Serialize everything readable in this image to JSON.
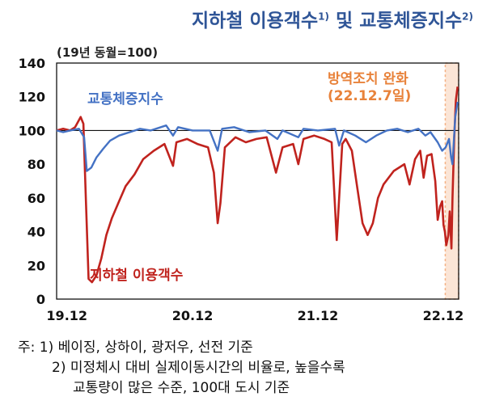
{
  "title": {
    "main": "지하철 이용객수",
    "sup1": "1)",
    "and": "및",
    "second": "교통체증지수",
    "sup2": "2)"
  },
  "unit_label": "(19년 동월=100)",
  "annotation": {
    "line1": "방역조치 완화",
    "line2": "(22.12.7일)"
  },
  "notes": [
    "주: 1) 베이징, 상하이, 광저우, 선전 기준",
    "2) 미정체시 대비 실제이동시간의 비율로, 높을수록",
    "교통량이 많은 수준, 100대 도시 기준"
  ],
  "colors": {
    "traffic": "#4472c4",
    "subway": "#c0231e",
    "shade": "#f4b183",
    "annotation": "#e8823a",
    "title": "#2f5597"
  },
  "chart_data": {
    "type": "line",
    "title": "지하철 이용객수 및 교통체증지수",
    "ylabel": "(19년 동월=100)",
    "ylim": [
      0,
      140
    ],
    "yticks": [
      0,
      20,
      40,
      60,
      80,
      100,
      120,
      140
    ],
    "xticks": [
      "19.12",
      "20.12",
      "21.12",
      "22.12"
    ],
    "xlim": [
      "2019-11-01",
      "2023-01-15"
    ],
    "reference_line": 100,
    "grid": false,
    "shaded_period": {
      "start": "2022-12-07",
      "end": "2023-01-15"
    },
    "series": [
      {
        "name": "교통체증지수",
        "points": [
          [
            "2019-11-01",
            100
          ],
          [
            "2019-11-20",
            99
          ],
          [
            "2019-12-10",
            100
          ],
          [
            "2020-01-05",
            101
          ],
          [
            "2020-01-20",
            96
          ],
          [
            "2020-01-28",
            76
          ],
          [
            "2020-02-10",
            78
          ],
          [
            "2020-02-25",
            84
          ],
          [
            "2020-03-15",
            89
          ],
          [
            "2020-04-05",
            94
          ],
          [
            "2020-05-01",
            97
          ],
          [
            "2020-06-01",
            99
          ],
          [
            "2020-07-01",
            101
          ],
          [
            "2020-08-01",
            100
          ],
          [
            "2020-09-15",
            103
          ],
          [
            "2020-10-05",
            97
          ],
          [
            "2020-10-20",
            102
          ],
          [
            "2020-12-01",
            100
          ],
          [
            "2021-01-20",
            100
          ],
          [
            "2021-02-12",
            88
          ],
          [
            "2021-02-25",
            101
          ],
          [
            "2021-04-01",
            102
          ],
          [
            "2021-05-15",
            99
          ],
          [
            "2021-07-01",
            100
          ],
          [
            "2021-08-05",
            95
          ],
          [
            "2021-08-20",
            100
          ],
          [
            "2021-10-05",
            96
          ],
          [
            "2021-10-20",
            101
          ],
          [
            "2021-12-01",
            100
          ],
          [
            "2022-01-20",
            101
          ],
          [
            "2022-02-01",
            91
          ],
          [
            "2022-02-15",
            100
          ],
          [
            "2022-03-20",
            97
          ],
          [
            "2022-04-20",
            93
          ],
          [
            "2022-05-20",
            97
          ],
          [
            "2022-06-20",
            100
          ],
          [
            "2022-07-20",
            101
          ],
          [
            "2022-08-20",
            99
          ],
          [
            "2022-09-20",
            101
          ],
          [
            "2022-10-10",
            97
          ],
          [
            "2022-10-25",
            99
          ],
          [
            "2022-11-15",
            93
          ],
          [
            "2022-11-28",
            88
          ],
          [
            "2022-12-08",
            90
          ],
          [
            "2022-12-18",
            95
          ],
          [
            "2022-12-24",
            84
          ],
          [
            "2022-12-28",
            80
          ],
          [
            "2023-01-05",
            108
          ],
          [
            "2023-01-12",
            117
          ]
        ]
      },
      {
        "name": "지하철 이용객수",
        "points": [
          [
            "2019-11-01",
            100
          ],
          [
            "2019-11-20",
            101
          ],
          [
            "2019-12-10",
            100
          ],
          [
            "2019-12-25",
            102
          ],
          [
            "2020-01-10",
            108
          ],
          [
            "2020-01-18",
            104
          ],
          [
            "2020-01-25",
            60
          ],
          [
            "2020-02-02",
            12
          ],
          [
            "2020-02-12",
            10
          ],
          [
            "2020-02-25",
            14
          ],
          [
            "2020-03-10",
            24
          ],
          [
            "2020-03-25",
            38
          ],
          [
            "2020-04-10",
            48
          ],
          [
            "2020-05-01",
            58
          ],
          [
            "2020-05-20",
            67
          ],
          [
            "2020-06-15",
            74
          ],
          [
            "2020-07-10",
            83
          ],
          [
            "2020-08-10",
            88
          ],
          [
            "2020-09-10",
            92
          ],
          [
            "2020-10-05",
            79
          ],
          [
            "2020-10-15",
            93
          ],
          [
            "2020-11-15",
            95
          ],
          [
            "2020-12-15",
            92
          ],
          [
            "2021-01-15",
            90
          ],
          [
            "2021-02-01",
            75
          ],
          [
            "2021-02-12",
            45
          ],
          [
            "2021-02-20",
            57
          ],
          [
            "2021-03-05",
            90
          ],
          [
            "2021-04-05",
            96
          ],
          [
            "2021-05-05",
            93
          ],
          [
            "2021-06-05",
            95
          ],
          [
            "2021-07-05",
            96
          ],
          [
            "2021-08-01",
            75
          ],
          [
            "2021-08-20",
            90
          ],
          [
            "2021-09-20",
            92
          ],
          [
            "2021-10-05",
            80
          ],
          [
            "2021-10-20",
            95
          ],
          [
            "2021-11-20",
            97
          ],
          [
            "2021-12-20",
            95
          ],
          [
            "2022-01-10",
            93
          ],
          [
            "2022-01-25",
            35
          ],
          [
            "2022-02-10",
            92
          ],
          [
            "2022-02-20",
            95
          ],
          [
            "2022-03-10",
            88
          ],
          [
            "2022-03-25",
            67
          ],
          [
            "2022-04-10",
            45
          ],
          [
            "2022-04-25",
            38
          ],
          [
            "2022-05-10",
            45
          ],
          [
            "2022-05-25",
            60
          ],
          [
            "2022-06-10",
            68
          ],
          [
            "2022-07-10",
            76
          ],
          [
            "2022-08-10",
            80
          ],
          [
            "2022-08-25",
            68
          ],
          [
            "2022-09-10",
            83
          ],
          [
            "2022-09-25",
            88
          ],
          [
            "2022-10-05",
            72
          ],
          [
            "2022-10-15",
            85
          ],
          [
            "2022-10-28",
            86
          ],
          [
            "2022-11-08",
            70
          ],
          [
            "2022-11-15",
            47
          ],
          [
            "2022-11-22",
            55
          ],
          [
            "2022-11-28",
            58
          ],
          [
            "2022-12-02",
            44
          ],
          [
            "2022-12-06",
            40
          ],
          [
            "2022-12-10",
            32
          ],
          [
            "2022-12-16",
            38
          ],
          [
            "2022-12-20",
            52
          ],
          [
            "2022-12-25",
            30
          ],
          [
            "2022-12-28",
            60
          ],
          [
            "2023-01-02",
            95
          ],
          [
            "2023-01-07",
            118
          ],
          [
            "2023-01-12",
            126
          ]
        ]
      }
    ],
    "labels": {
      "traffic": "교통체증지수",
      "subway": "지하철 이용객수"
    }
  }
}
